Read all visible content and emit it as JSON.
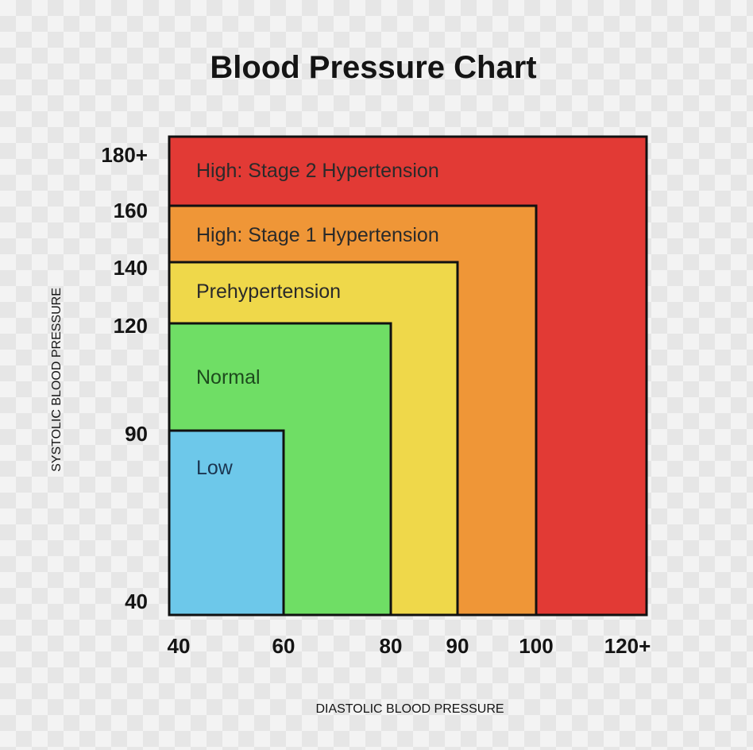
{
  "chart_data": {
    "type": "heatmap",
    "title": "Blood Pressure Chart",
    "xlabel": "DIASTOLIC BLOOD PRESSURE",
    "ylabel": "SYSTOLIC BLOOD PRESSURE",
    "x_ticks": [
      "40",
      "60",
      "80",
      "90",
      "100",
      "120+"
    ],
    "y_ticks": [
      "40",
      "90",
      "120",
      "140",
      "160",
      "180+"
    ],
    "zones": [
      {
        "label": "High: Stage 2 Hypertension",
        "diastolic_max": "120+",
        "systolic_max": "180+",
        "color": "#e23a35",
        "text_color": "#2a2a2a"
      },
      {
        "label": "High: Stage 1 Hypertension",
        "diastolic_max": "100",
        "systolic_max": "160",
        "color": "#ef9637",
        "text_color": "#2a2a2a"
      },
      {
        "label": "Prehypertension",
        "diastolic_max": "90",
        "systolic_max": "140",
        "color": "#efd84a",
        "text_color": "#2a2a2a"
      },
      {
        "label": "Normal",
        "diastolic_max": "80",
        "systolic_max": "120",
        "color": "#6fde65",
        "text_color": "#1d4a1d"
      },
      {
        "label": "Low",
        "diastolic_max": "60",
        "systolic_max": "90",
        "color": "#6dc8ea",
        "text_color": "#1b3550"
      }
    ]
  }
}
